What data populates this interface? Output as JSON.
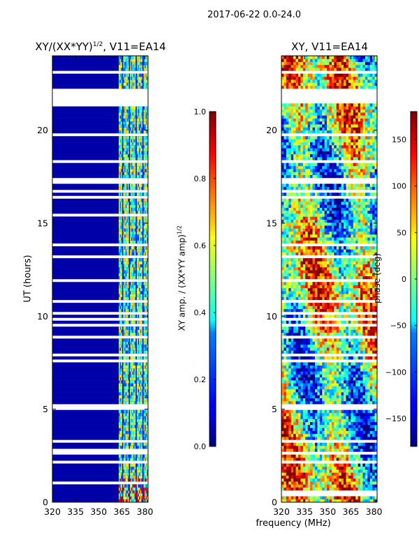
{
  "figure": {
    "suptitle": "2017-06-22 0.0-24.0",
    "xlabel": "frequency (MHz)"
  },
  "chart_data": [
    {
      "type": "heatmap",
      "title": "XY/(XX*YY)",
      "title_exp": "1/2",
      "title_suffix": ", V11=EA14",
      "ylabel": "UT (hours)",
      "xlim": [
        320,
        382
      ],
      "ylim": [
        0,
        24
      ],
      "xticks": [
        320,
        335,
        350,
        365,
        380
      ],
      "yticks": [
        0,
        5,
        10,
        15,
        20
      ],
      "colormap": "jet",
      "clim": [
        0.0,
        1.0
      ],
      "colorbar_label": "XY amp. / (XX*YY amp)",
      "colorbar_label_exp": "1/2",
      "colorbar_ticks": [
        "0.0",
        "0.2",
        "0.4",
        "0.6",
        "0.8",
        "1.0"
      ],
      "colorbar_tick_values": [
        0.0,
        0.2,
        0.4,
        0.6,
        0.8,
        1.0
      ],
      "no_data_gaps_ut": [
        [
          21.3,
          22.2
        ],
        [
          17.1,
          17.5
        ],
        [
          8.8,
          9.0
        ],
        [
          2.6,
          2.8
        ]
      ],
      "bright_band_freq_mhz": [
        [
          363,
          382
        ]
      ],
      "typical_value_low_freq": 0.0,
      "typical_value_high_freq": 0.45
    },
    {
      "type": "heatmap",
      "title": "XY, V11=EA14",
      "xlim": [
        320,
        382
      ],
      "ylim": [
        0,
        24
      ],
      "xticks": [
        320,
        335,
        350,
        365,
        380
      ],
      "yticks": [
        0,
        5,
        10,
        15,
        20
      ],
      "colormap": "jet",
      "clim": [
        -180,
        180
      ],
      "colorbar_label": "phase (deg)",
      "colorbar_ticks": [
        "−150",
        "−100",
        "−50",
        "0",
        "50",
        "100",
        "150"
      ],
      "colorbar_tick_values": [
        -150,
        -100,
        -50,
        0,
        50,
        100,
        150
      ],
      "no_data_gaps_ut": [
        [
          21.5,
          22.2
        ],
        [
          17.1,
          17.5
        ],
        [
          8.8,
          9.0
        ],
        [
          0.4,
          0.7
        ]
      ]
    }
  ]
}
